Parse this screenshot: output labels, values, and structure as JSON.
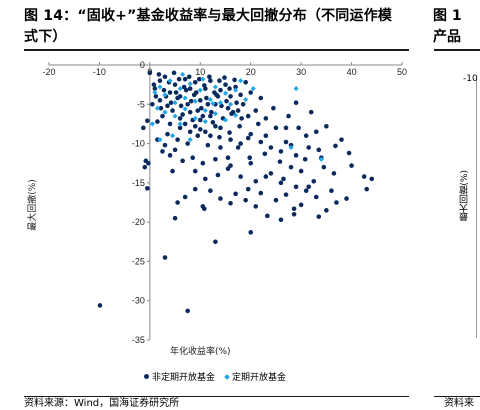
{
  "header": {
    "title": "图 14：“固收+”基金收益率与最大回撤分布（不同运作模式下）",
    "title_right": "图 1",
    "title_right_line2": "产品"
  },
  "footer": {
    "source": "资料来源：Wind，国海证券研究所",
    "source_right": "资料来"
  },
  "right_panel": {
    "ylabel": "最大回撤(%)",
    "tick": "-10"
  },
  "chart_data": {
    "type": "scatter",
    "xlabel": "年化收益率(%)",
    "ylabel": "最大回撤(%)",
    "xlim": [
      -20,
      50
    ],
    "ylim": [
      -35,
      0
    ],
    "xticks": [
      -20,
      -10,
      0,
      10,
      20,
      30,
      40,
      50
    ],
    "yticks": [
      0,
      -5,
      -10,
      -15,
      -20,
      -25,
      -30,
      -35
    ],
    "legend_position": "bottom",
    "grid": false,
    "series": [
      {
        "name": "非定期开放基金",
        "color": "#0a2a5e",
        "marker": "circle",
        "points": [
          [
            -9.9,
            -30.6
          ],
          [
            7.5,
            -31.3
          ],
          [
            3.0,
            -24.5
          ],
          [
            13.0,
            -22.5
          ],
          [
            20.0,
            -21.3
          ],
          [
            -0.5,
            -15.7
          ],
          [
            -1.0,
            -13.0
          ],
          [
            -0.8,
            -12.2
          ],
          [
            -0.3,
            -12.5
          ],
          [
            -1.3,
            -8.0
          ],
          [
            -0.5,
            -7.1
          ],
          [
            5.0,
            -19.5
          ],
          [
            10.5,
            -18.0
          ],
          [
            10.8,
            -18.3
          ],
          [
            16.0,
            -17.6
          ],
          [
            21.0,
            -18.0
          ],
          [
            23.3,
            -19.2
          ],
          [
            26.0,
            -19.7
          ],
          [
            28.6,
            -19.0
          ],
          [
            28.6,
            -18.3
          ],
          [
            30.0,
            -17.8
          ],
          [
            33.5,
            -19.3
          ],
          [
            35.0,
            -18.5
          ],
          [
            37.0,
            -17.5
          ],
          [
            39.0,
            -17.0
          ],
          [
            43.0,
            -15.8
          ],
          [
            44.0,
            -14.5
          ],
          [
            42.5,
            -14.2
          ],
          [
            40.0,
            -12.8
          ],
          [
            36.0,
            -16.0
          ],
          [
            33.0,
            -16.8
          ],
          [
            31.0,
            -16.0
          ],
          [
            29.0,
            -15.5
          ],
          [
            27.0,
            -16.5
          ],
          [
            25.0,
            -17.2
          ],
          [
            22.0,
            -16.3
          ],
          [
            19.0,
            -17.2
          ],
          [
            17.0,
            -16.4
          ],
          [
            14.0,
            -17.0
          ],
          [
            12.0,
            -16.0
          ],
          [
            9.0,
            -15.8
          ],
          [
            7.0,
            -16.8
          ],
          [
            5.5,
            -17.5
          ],
          [
            11.0,
            -14.5
          ],
          [
            13.5,
            -14.0
          ],
          [
            15.5,
            -13.2
          ],
          [
            18.0,
            -14.2
          ],
          [
            21.0,
            -14.8
          ],
          [
            24.0,
            -13.8
          ],
          [
            26.5,
            -14.5
          ],
          [
            30.0,
            -13.5
          ],
          [
            32.5,
            -14.8
          ],
          [
            36.5,
            -13.8
          ],
          [
            39.5,
            -11.2
          ],
          [
            38.0,
            -9.5
          ],
          [
            35.0,
            -7.8
          ],
          [
            33.0,
            -8.5
          ],
          [
            31.5,
            -10.5
          ],
          [
            29.0,
            -11.5
          ],
          [
            27.0,
            -9.8
          ],
          [
            25.0,
            -8.0
          ],
          [
            23.0,
            -9.0
          ],
          [
            21.5,
            -7.5
          ],
          [
            19.5,
            -9.3
          ],
          [
            17.5,
            -10.5
          ],
          [
            15.5,
            -11.8
          ],
          [
            13.0,
            -12.0
          ],
          [
            10.5,
            -12.5
          ],
          [
            8.5,
            -11.8
          ],
          [
            6.5,
            -12.2
          ],
          [
            4.5,
            -13.5
          ],
          [
            2.5,
            -11.0
          ],
          [
            1.5,
            -9.5
          ],
          [
            3.5,
            -8.8
          ],
          [
            5.5,
            -9.5
          ],
          [
            7.5,
            -10.0
          ],
          [
            9.5,
            -9.0
          ],
          [
            11.5,
            -10.2
          ],
          [
            13.8,
            -9.2
          ],
          [
            15.8,
            -8.6
          ],
          [
            17.8,
            -7.8
          ],
          [
            19.8,
            -11.8
          ],
          [
            22.8,
            -11.3
          ],
          [
            25.8,
            -12.3
          ],
          [
            28.0,
            -13.0
          ],
          [
            30.8,
            -12.0
          ],
          [
            34.0,
            -11.8
          ],
          [
            36.8,
            -10.3
          ],
          [
            32.0,
            -6.0
          ],
          [
            29.0,
            -4.8
          ],
          [
            27.5,
            -6.5
          ],
          [
            24.5,
            -5.5
          ],
          [
            22.0,
            -4.2
          ],
          [
            20.0,
            -3.5
          ],
          [
            18.5,
            -5.0
          ],
          [
            16.5,
            -6.0
          ],
          [
            14.5,
            -6.8
          ],
          [
            12.5,
            -7.3
          ],
          [
            10.5,
            -6.5
          ],
          [
            8.5,
            -7.0
          ],
          [
            6.5,
            -6.3
          ],
          [
            4.5,
            -5.8
          ],
          [
            2.5,
            -6.5
          ],
          [
            0.5,
            -5.0
          ],
          [
            1.0,
            -3.0
          ],
          [
            2.0,
            -2.0
          ],
          [
            3.0,
            -1.5
          ],
          [
            4.0,
            -3.5
          ],
          [
            5.0,
            -2.5
          ],
          [
            6.0,
            -4.0
          ],
          [
            7.0,
            -1.8
          ],
          [
            8.0,
            -3.0
          ],
          [
            9.0,
            -2.2
          ],
          [
            10.0,
            -4.5
          ],
          [
            11.0,
            -3.0
          ],
          [
            12.0,
            -2.0
          ],
          [
            13.0,
            -5.0
          ],
          [
            14.0,
            -3.2
          ],
          [
            15.0,
            -2.5
          ],
          [
            16.0,
            -4.0
          ],
          [
            17.0,
            -2.8
          ],
          [
            18.0,
            -3.8
          ],
          [
            19.0,
            -2.2
          ],
          [
            2.0,
            -4.5
          ],
          [
            3.5,
            -5.2
          ],
          [
            5.5,
            -4.2
          ],
          [
            7.5,
            -5.0
          ],
          [
            9.5,
            -5.8
          ],
          [
            11.5,
            -5.0
          ],
          [
            13.5,
            -4.0
          ],
          [
            15.5,
            -5.5
          ],
          [
            17.5,
            -5.8
          ],
          [
            19.5,
            -6.5
          ],
          [
            21.0,
            -5.8
          ],
          [
            23.0,
            -6.8
          ],
          [
            4.0,
            -7.5
          ],
          [
            6.0,
            -8.0
          ],
          [
            8.0,
            -8.5
          ],
          [
            10.0,
            -8.2
          ],
          [
            12.0,
            -9.0
          ],
          [
            14.0,
            -8.0
          ],
          [
            16.0,
            -9.5
          ],
          [
            18.0,
            -10.0
          ],
          [
            20.0,
            -8.8
          ],
          [
            22.0,
            -9.8
          ],
          [
            24.0,
            -10.5
          ],
          [
            26.0,
            -11.0
          ],
          [
            28.0,
            -10.2
          ],
          [
            1.5,
            -7.2
          ],
          [
            0.0,
            -1.0
          ],
          [
            0.8,
            -2.5
          ],
          [
            1.8,
            -1.2
          ],
          [
            2.8,
            -3.2
          ],
          [
            3.8,
            -2.2
          ],
          [
            4.8,
            -1.0
          ],
          [
            5.8,
            -1.8
          ],
          [
            6.8,
            -2.8
          ],
          [
            7.8,
            -1.5
          ],
          [
            8.8,
            -3.8
          ],
          [
            9.8,
            -1.8
          ],
          [
            10.8,
            -2.6
          ],
          [
            11.8,
            -1.5
          ],
          [
            12.8,
            -3.5
          ],
          [
            13.8,
            -2.0
          ],
          [
            14.8,
            -1.6
          ],
          [
            15.8,
            -3.0
          ],
          [
            16.8,
            -1.9
          ],
          [
            1.2,
            -4.0
          ],
          [
            2.2,
            -5.5
          ],
          [
            3.2,
            -4.0
          ],
          [
            4.2,
            -4.8
          ],
          [
            5.2,
            -3.5
          ],
          [
            6.2,
            -5.2
          ],
          [
            7.2,
            -3.2
          ],
          [
            8.2,
            -4.6
          ],
          [
            9.2,
            -3.5
          ],
          [
            10.2,
            -5.5
          ],
          [
            11.2,
            -4.2
          ],
          [
            12.2,
            -6.0
          ],
          [
            13.2,
            -3.8
          ],
          [
            14.2,
            -5.2
          ],
          [
            15.2,
            -4.6
          ],
          [
            16.2,
            -6.2
          ],
          [
            17.2,
            -4.8
          ],
          [
            18.2,
            -6.8
          ],
          [
            6.0,
            -6.8
          ],
          [
            7.0,
            -7.5
          ],
          [
            8.0,
            -6.0
          ],
          [
            9.0,
            -7.8
          ],
          [
            10.0,
            -7.0
          ],
          [
            11.0,
            -8.5
          ],
          [
            12.0,
            -6.5
          ],
          [
            13.0,
            -7.8
          ],
          [
            14.0,
            -10.5
          ],
          [
            3.0,
            -10.2
          ],
          [
            4.0,
            -11.5
          ],
          [
            5.0,
            -10.8
          ],
          [
            9.0,
            -13.5
          ],
          [
            16.0,
            -12.8
          ],
          [
            20.0,
            -12.5
          ],
          [
            23.0,
            -14.2
          ],
          [
            19.5,
            -15.8
          ],
          [
            26.0,
            -15.0
          ],
          [
            31.5,
            -15.5
          ],
          [
            34.5,
            -13.0
          ],
          [
            29.5,
            -8.0
          ],
          [
            27.0,
            -8.0
          ],
          [
            31.0,
            -9.0
          ],
          [
            33.5,
            -10.8
          ]
        ]
      },
      {
        "name": "定期开放基金",
        "color": "#22a7e6",
        "marker": "diamond",
        "points": [
          [
            34.0,
            -12.0
          ],
          [
            28.0,
            -10.5
          ],
          [
            29.0,
            -3.0
          ],
          [
            18.0,
            -2.0
          ],
          [
            2.0,
            -9.5
          ],
          [
            4.5,
            -9.0
          ],
          [
            6.0,
            -7.5
          ],
          [
            8.0,
            -9.5
          ],
          [
            0.5,
            -7.5
          ],
          [
            1.5,
            -5.5
          ],
          [
            3.0,
            -3.8
          ],
          [
            4.0,
            -2.0
          ],
          [
            5.0,
            -4.8
          ],
          [
            6.0,
            -3.0
          ],
          [
            7.0,
            -4.2
          ],
          [
            8.0,
            -2.4
          ],
          [
            9.0,
            -4.6
          ],
          [
            10.0,
            -3.2
          ],
          [
            11.0,
            -5.8
          ],
          [
            12.0,
            -4.4
          ],
          [
            13.0,
            -2.8
          ],
          [
            14.0,
            -4.8
          ],
          [
            15.0,
            -3.6
          ],
          [
            16.0,
            -5.0
          ],
          [
            17.0,
            -3.2
          ],
          [
            3.0,
            -6.0
          ],
          [
            5.0,
            -6.5
          ],
          [
            7.0,
            -5.6
          ],
          [
            9.0,
            -6.8
          ],
          [
            11.0,
            -7.2
          ],
          [
            13.0,
            -6.2
          ],
          [
            15.0,
            -7.0
          ],
          [
            17.0,
            -6.4
          ],
          [
            19.0,
            -4.4
          ],
          [
            20.5,
            -3.0
          ],
          [
            1.0,
            -3.5
          ],
          [
            2.0,
            -2.8
          ],
          [
            6.5,
            -1.2
          ],
          [
            10.5,
            -1.8
          ],
          [
            12.5,
            -4.9
          ]
        ]
      }
    ]
  }
}
